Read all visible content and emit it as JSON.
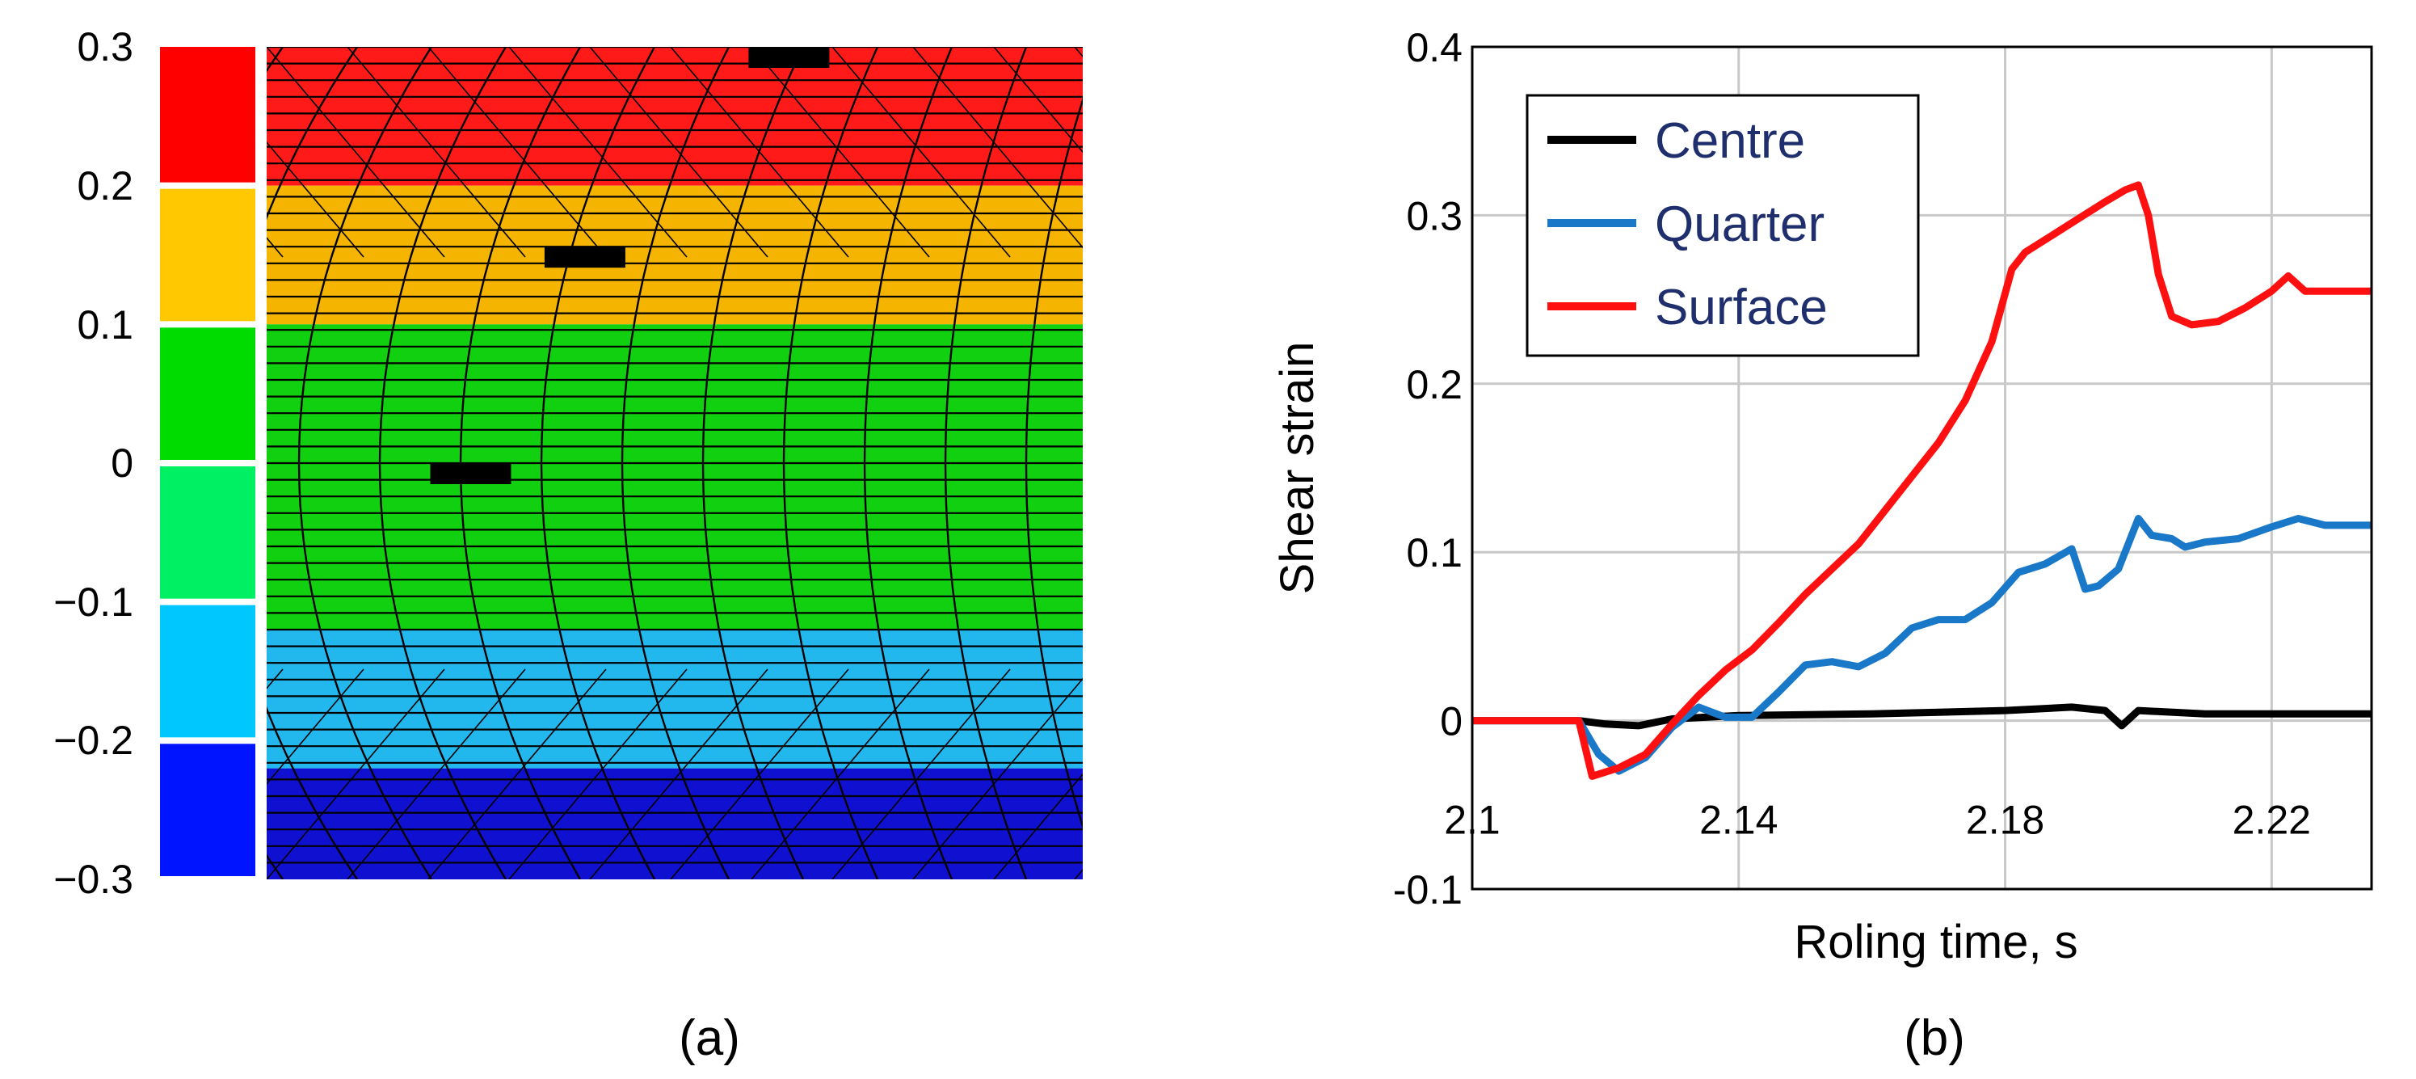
{
  "chart_data": [
    {
      "type": "heatmap",
      "panel_label": "(a)",
      "colorbar": {
        "ticks": [
          "0.3",
          "0.2",
          "0.1",
          "0",
          "−0.1",
          "−0.2",
          "−0.3"
        ],
        "colors": [
          "#ff0000",
          "#ffc800",
          "#00dc00",
          "#00f064",
          "#00c8ff",
          "#0014ff"
        ]
      },
      "bands": [
        {
          "from": 0.3,
          "to": 0.2,
          "color": "#ff1a1a"
        },
        {
          "from": 0.2,
          "to": 0.1,
          "color": "#f5b400"
        },
        {
          "from": 0.1,
          "to": -0.12,
          "color": "#10d010"
        },
        {
          "from": -0.12,
          "to": -0.22,
          "color": "#22b8ee"
        },
        {
          "from": -0.22,
          "to": -0.3,
          "color": "#1010d0"
        }
      ],
      "markers": [
        {
          "x": 0.64,
          "depth": 0.0
        },
        {
          "x": 0.39,
          "depth": 0.24
        },
        {
          "x": 0.25,
          "depth": 0.5
        }
      ]
    },
    {
      "type": "line",
      "panel_label": "(b)",
      "xlabel": "Roling time, s",
      "ylabel": "Shear strain",
      "xlim": [
        2.1,
        2.235
      ],
      "ylim": [
        -0.1,
        0.4
      ],
      "xticks": [
        "2.1",
        "2.14",
        "2.18",
        "2.22"
      ],
      "xtick_values": [
        2.1,
        2.14,
        2.18,
        2.22
      ],
      "yticks": [
        "0.4",
        "0.3",
        "0.2",
        "0.1",
        "0",
        "-0.1"
      ],
      "ytick_values": [
        0.4,
        0.3,
        0.2,
        0.1,
        0.0,
        -0.1
      ],
      "legend_position": "top-left",
      "series": [
        {
          "name": "Centre",
          "color": "#000000",
          "text_color": "#1f2f6e",
          "x": [
            2.1,
            2.116,
            2.12,
            2.125,
            2.13,
            2.14,
            2.16,
            2.18,
            2.19,
            2.195,
            2.1975,
            2.2,
            2.21,
            2.235
          ],
          "y": [
            0.0,
            0.0,
            -0.002,
            -0.003,
            0.001,
            0.003,
            0.004,
            0.006,
            0.008,
            0.006,
            -0.003,
            0.006,
            0.004,
            0.004
          ]
        },
        {
          "name": "Quarter",
          "color": "#1a78c8",
          "text_color": "#1f2f6e",
          "x": [
            2.1,
            2.116,
            2.119,
            2.122,
            2.126,
            2.13,
            2.134,
            2.138,
            2.142,
            2.146,
            2.15,
            2.154,
            2.158,
            2.162,
            2.166,
            2.17,
            2.174,
            2.178,
            2.182,
            2.186,
            2.19,
            2.192,
            2.194,
            2.197,
            2.2,
            2.202,
            2.205,
            2.207,
            2.21,
            2.215,
            2.22,
            2.224,
            2.228,
            2.235
          ],
          "y": [
            0.0,
            0.0,
            -0.02,
            -0.03,
            -0.022,
            -0.004,
            0.008,
            0.002,
            0.002,
            0.017,
            0.033,
            0.035,
            0.032,
            0.04,
            0.055,
            0.06,
            0.06,
            0.07,
            0.088,
            0.093,
            0.102,
            0.078,
            0.08,
            0.09,
            0.12,
            0.11,
            0.108,
            0.103,
            0.106,
            0.108,
            0.115,
            0.12,
            0.116,
            0.116
          ]
        },
        {
          "name": "Surface",
          "color": "#ff1010",
          "text_color": "#1f2f6e",
          "x": [
            2.1,
            2.116,
            2.118,
            2.122,
            2.126,
            2.13,
            2.134,
            2.138,
            2.142,
            2.146,
            2.15,
            2.154,
            2.158,
            2.162,
            2.166,
            2.17,
            2.174,
            2.178,
            2.181,
            2.183,
            2.187,
            2.191,
            2.195,
            2.198,
            2.2,
            2.2015,
            2.203,
            2.205,
            2.208,
            2.212,
            2.216,
            2.22,
            2.2225,
            2.225,
            2.235
          ],
          "y": [
            0.0,
            0.0,
            -0.033,
            -0.028,
            -0.02,
            -0.002,
            0.015,
            0.03,
            0.042,
            0.058,
            0.075,
            0.09,
            0.105,
            0.125,
            0.145,
            0.165,
            0.19,
            0.225,
            0.268,
            0.278,
            0.288,
            0.298,
            0.308,
            0.315,
            0.318,
            0.3,
            0.265,
            0.24,
            0.235,
            0.237,
            0.245,
            0.255,
            0.264,
            0.255,
            0.255
          ]
        }
      ]
    }
  ]
}
